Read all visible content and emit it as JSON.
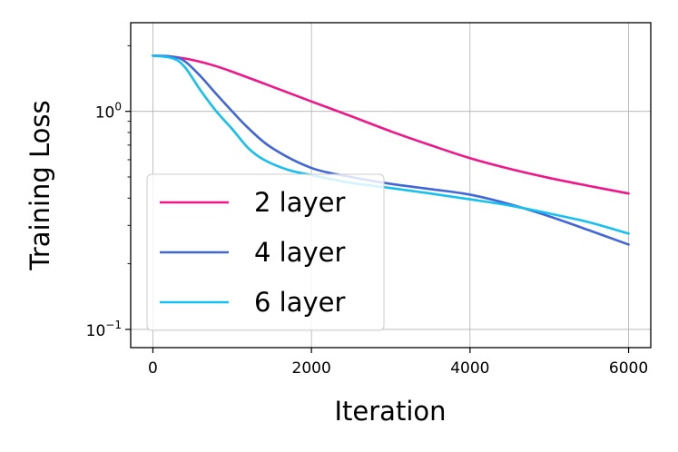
{
  "chart_data": {
    "type": "line",
    "title": "",
    "xlabel": "Iteration",
    "ylabel": "Training Loss",
    "xlim": [
      -280,
      6280
    ],
    "ylim": [
      0.0825,
      2.55
    ],
    "y_scale": "log",
    "grid": true,
    "x_ticks": [
      0,
      2000,
      4000,
      6000
    ],
    "x_tick_labels": [
      "0",
      "2000",
      "4000",
      "6000"
    ],
    "y_ticks": [
      1,
      0.1
    ],
    "y_tick_labels": [
      {
        "base": "10",
        "exp": "0"
      },
      {
        "base": "10",
        "exp": "−1"
      }
    ],
    "legend_position": "lower-left",
    "series": [
      {
        "name": "2 layer",
        "color": "#f0168a",
        "x": [
          0,
          250,
          500,
          750,
          1000,
          1500,
          2000,
          2500,
          3000,
          3500,
          4000,
          4500,
          5000,
          5500,
          6000
        ],
        "y": [
          1.8,
          1.78,
          1.72,
          1.63,
          1.52,
          1.3,
          1.11,
          0.95,
          0.81,
          0.7,
          0.61,
          0.545,
          0.495,
          0.455,
          0.42
        ]
      },
      {
        "name": "4 layer",
        "color": "#4066d8",
        "x": [
          0,
          250,
          400,
          600,
          800,
          1000,
          1200,
          1500,
          2000,
          2500,
          3000,
          3500,
          4000,
          4500,
          5000,
          5500,
          6000
        ],
        "y": [
          1.8,
          1.78,
          1.7,
          1.45,
          1.2,
          1.0,
          0.84,
          0.68,
          0.55,
          0.5,
          0.465,
          0.44,
          0.415,
          0.375,
          0.33,
          0.285,
          0.245
        ]
      },
      {
        "name": "6 layer",
        "color": "#14c0f0",
        "x": [
          0,
          250,
          400,
          600,
          800,
          1000,
          1200,
          1400,
          1700,
          2000,
          2500,
          3000,
          3500,
          4000,
          4500,
          5000,
          5500,
          6000
        ],
        "y": [
          1.8,
          1.75,
          1.6,
          1.25,
          1.0,
          0.83,
          0.68,
          0.6,
          0.54,
          0.51,
          0.47,
          0.445,
          0.42,
          0.395,
          0.37,
          0.34,
          0.31,
          0.275
        ]
      }
    ]
  }
}
